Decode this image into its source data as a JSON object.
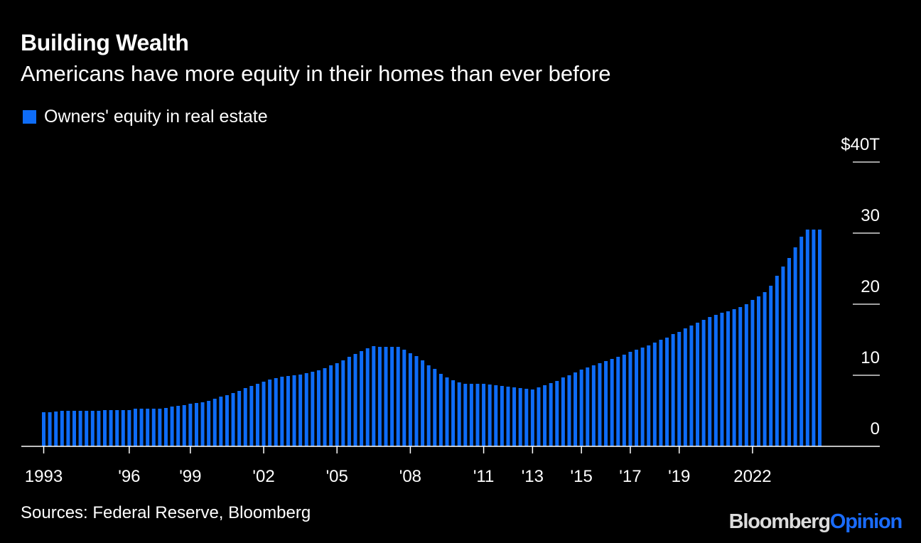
{
  "title": "Building Wealth",
  "subtitle": "Americans have more equity in their homes than ever before",
  "legend": {
    "label": "Owners' equity in real estate"
  },
  "colors": {
    "bar": "#0e6cf7",
    "background": "#000000",
    "text": "#ffffff",
    "axis": "#ffffff"
  },
  "source": "Sources: Federal Reserve, Bloomberg",
  "brand": {
    "first": "Bloomberg",
    "second": "Opinion",
    "second_color": "#1a6cff"
  },
  "chart_data": {
    "type": "bar",
    "title": "Building Wealth",
    "subtitle": "Americans have more equity in their homes than ever before",
    "series_name": "Owners' equity in real estate",
    "frequency": "quarterly",
    "x_start": 1993.0,
    "x_step": 0.25,
    "ylim": [
      0,
      40
    ],
    "y_ticks": [
      {
        "value": 40,
        "label": "$40T"
      },
      {
        "value": 30,
        "label": "30"
      },
      {
        "value": 20,
        "label": "20"
      },
      {
        "value": 10,
        "label": "10"
      },
      {
        "value": 0,
        "label": "0"
      }
    ],
    "x_ticks": [
      {
        "year": 1993,
        "label": "1993"
      },
      {
        "year": 1996.5,
        "label": "'96"
      },
      {
        "year": 1999,
        "label": "'99"
      },
      {
        "year": 2002,
        "label": "'02"
      },
      {
        "year": 2005,
        "label": "'05"
      },
      {
        "year": 2008,
        "label": "'08"
      },
      {
        "year": 2011,
        "label": "'11"
      },
      {
        "year": 2013,
        "label": "'13"
      },
      {
        "year": 2015,
        "label": "'15"
      },
      {
        "year": 2017,
        "label": "'17"
      },
      {
        "year": 2019,
        "label": "'19"
      },
      {
        "year": 2022,
        "label": "2022"
      }
    ],
    "values": [
      4.8,
      4.8,
      4.9,
      5.0,
      5.0,
      5.0,
      5.0,
      5.0,
      5.0,
      5.0,
      5.1,
      5.1,
      5.1,
      5.1,
      5.1,
      5.3,
      5.3,
      5.3,
      5.3,
      5.3,
      5.4,
      5.6,
      5.7,
      5.8,
      6.0,
      6.1,
      6.2,
      6.4,
      6.7,
      7.0,
      7.2,
      7.5,
      7.8,
      8.2,
      8.5,
      8.8,
      9.1,
      9.4,
      9.6,
      9.8,
      9.9,
      10.0,
      10.1,
      10.3,
      10.5,
      10.7,
      11.0,
      11.4,
      11.7,
      12.1,
      12.6,
      13.0,
      13.4,
      13.8,
      14.1,
      14.0,
      14.0,
      14.0,
      14.0,
      13.6,
      13.1,
      12.7,
      12.1,
      11.4,
      10.9,
      10.2,
      9.7,
      9.3,
      9.0,
      8.8,
      8.8,
      8.8,
      8.8,
      8.7,
      8.6,
      8.5,
      8.4,
      8.3,
      8.2,
      8.1,
      8.0,
      8.3,
      8.6,
      8.9,
      9.2,
      9.7,
      10.0,
      10.4,
      10.8,
      11.1,
      11.4,
      11.7,
      12.0,
      12.3,
      12.6,
      12.9,
      13.3,
      13.6,
      13.9,
      14.2,
      14.6,
      15.0,
      15.3,
      15.8,
      16.1,
      16.6,
      17.0,
      17.4,
      17.8,
      18.2,
      18.5,
      18.8,
      19.0,
      19.3,
      19.6,
      20.0,
      20.6,
      21.1,
      21.7,
      22.6,
      24.0,
      25.3,
      26.5,
      28.0,
      29.5,
      30.5,
      30.5,
      30.5
    ]
  }
}
